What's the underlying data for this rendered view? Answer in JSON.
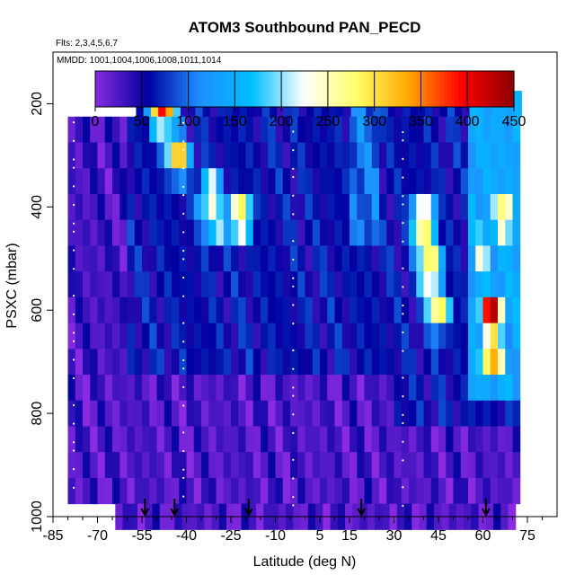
{
  "chart_data": {
    "type": "heatmap",
    "title": "ATOM3 Southbound PAN_PECD",
    "flights_label": "Flts: 2,3,4,5,6,7",
    "mmdd_label": "MMDD: 1001,1004,1006,1008,1011,1014",
    "xlabel": "Latitude (deg N)",
    "ylabel": "PSXC (mbar)",
    "x_range": [
      -85,
      85
    ],
    "y_range": [
      1000,
      100
    ],
    "x_ticks": [
      -85,
      -70,
      -55,
      -40,
      -25,
      -10,
      5,
      15,
      30,
      45,
      60,
      75
    ],
    "y_ticks": [
      200,
      400,
      600,
      800,
      1000
    ],
    "colorbar": {
      "min": 0,
      "max": 450,
      "ticks": [
        0,
        50,
        100,
        150,
        200,
        250,
        300,
        350,
        400,
        450
      ],
      "colors": [
        "#8a2be2",
        "#0000a0",
        "#1e90ff",
        "#00bfff",
        "#ffffff",
        "#ffff66",
        "#ffa500",
        "#ff0000",
        "#8b0000"
      ]
    },
    "arrow_latitudes": [
      -54,
      -44,
      -19,
      19,
      61
    ],
    "pressure_rows": [
      200,
      250,
      300,
      350,
      400,
      450,
      500,
      550,
      600,
      650,
      700,
      750,
      800,
      850,
      900,
      950,
      1000
    ],
    "hotspots": [
      {
        "lat": -48,
        "p": 210,
        "value": 420
      },
      {
        "lat": -43,
        "p": 300,
        "value": 320
      },
      {
        "lat": -32,
        "p": 380,
        "value": 280
      },
      {
        "lat": -22,
        "p": 420,
        "value": 330
      },
      {
        "lat": -30,
        "p": 450,
        "value": 200
      },
      {
        "lat": 40,
        "p": 430,
        "value": 340
      },
      {
        "lat": 42,
        "p": 520,
        "value": 350
      },
      {
        "lat": 45,
        "p": 600,
        "value": 300
      },
      {
        "lat": 63,
        "p": 600,
        "value": 420
      },
      {
        "lat": 63,
        "p": 680,
        "value": 400
      },
      {
        "lat": 67,
        "p": 420,
        "value": 330
      },
      {
        "lat": 60,
        "p": 480,
        "value": 260
      }
    ]
  }
}
